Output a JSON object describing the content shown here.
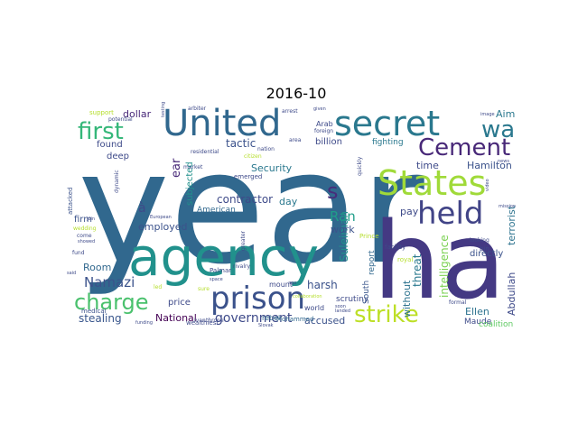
{
  "chart_data": {
    "type": "wordcloud",
    "title": "2016-10",
    "grid": false,
    "words": [
      {
        "text": "year",
        "color": "#31688e"
      },
      {
        "text": "ha",
        "color": "#443983"
      },
      {
        "text": "agency",
        "color": "#21918c"
      },
      {
        "text": "United",
        "color": "#31688e"
      },
      {
        "text": "secret",
        "color": "#2a788e"
      },
      {
        "text": "States",
        "color": "#a0da39"
      },
      {
        "text": "prison",
        "color": "#3b528b"
      },
      {
        "text": "held",
        "color": "#414487"
      },
      {
        "text": "Cement",
        "color": "#482878"
      },
      {
        "text": "first",
        "color": "#35b779"
      },
      {
        "text": "charge",
        "color": "#4ac16d"
      },
      {
        "text": "strike",
        "color": "#bddf26"
      },
      {
        "text": "wa",
        "color": "#2a788e"
      },
      {
        "text": "s",
        "color": "#472d7b"
      },
      {
        "text": "government",
        "color": "#3e4a89"
      },
      {
        "text": "Ran",
        "color": "#1f9e89"
      },
      {
        "text": "Namazi",
        "color": "#3b528b"
      },
      {
        "text": "Suleiman",
        "color": "#21918c"
      },
      {
        "text": "intelligence",
        "color": "#7ad151"
      },
      {
        "text": "Abdullah",
        "color": "#3e4a89"
      },
      {
        "text": "terrorist",
        "color": "#2c728e"
      },
      {
        "text": "stealing",
        "color": "#39568c"
      },
      {
        "text": "contractor",
        "color": "#3e4a89"
      },
      {
        "text": "threat",
        "color": "#2a788e"
      },
      {
        "text": "without",
        "color": "#2c728e"
      },
      {
        "text": "accused",
        "color": "#3b528b"
      },
      {
        "text": "harsh",
        "color": "#3b528b"
      },
      {
        "text": "Hamilton",
        "color": "#3b528b"
      },
      {
        "text": "Ellen",
        "color": "#2c728e"
      },
      {
        "text": "National",
        "color": "#440154"
      },
      {
        "text": "Security",
        "color": "#2a788e"
      },
      {
        "text": "dollar",
        "color": "#482878"
      },
      {
        "text": "tactic",
        "color": "#3b528b"
      },
      {
        "text": "billion",
        "color": "#3e4a89"
      },
      {
        "text": "deep",
        "color": "#3e4a89"
      },
      {
        "text": "subjected",
        "color": "#21918c"
      },
      {
        "text": "found",
        "color": "#3e4a89"
      },
      {
        "text": "employed",
        "color": "#3b528b"
      },
      {
        "text": "Room",
        "color": "#31688e"
      },
      {
        "text": "price",
        "color": "#3e4a89"
      },
      {
        "text": "day",
        "color": "#2a788e"
      },
      {
        "text": "pay",
        "color": "#3e4a89"
      },
      {
        "text": "time",
        "color": "#3e4a89"
      },
      {
        "text": "fighting",
        "color": "#2a788e"
      },
      {
        "text": "work",
        "color": "#3b528b"
      },
      {
        "text": "report",
        "color": "#31688e"
      },
      {
        "text": "scrutiny",
        "color": "#3e4a89"
      },
      {
        "text": "directly",
        "color": "#3b528b"
      },
      {
        "text": "Aim",
        "color": "#2a788e"
      },
      {
        "text": "Maude",
        "color": "#3e4a89"
      },
      {
        "text": "coalition",
        "color": "#5ec962"
      },
      {
        "text": "firm",
        "color": "#3b528b"
      },
      {
        "text": "à",
        "color": "#3e4a89"
      },
      {
        "text": "ear",
        "color": "#482878"
      },
      {
        "text": "American",
        "color": "#31688e"
      },
      {
        "text": "South",
        "color": "#39568c"
      },
      {
        "text": "world",
        "color": "#3e4a89"
      },
      {
        "text": "mount",
        "color": "#3e4a89"
      },
      {
        "text": "rebel",
        "color": "#31688e"
      },
      {
        "text": "Mohammed",
        "color": "#31688e"
      },
      {
        "text": "Palmar",
        "color": "#3e4a89"
      },
      {
        "text": "rivalry",
        "color": "#3e4a89"
      },
      {
        "text": "Ivan",
        "color": "#3e4a89"
      },
      {
        "text": "throne",
        "color": "#3e4a89"
      },
      {
        "text": "wealthiest",
        "color": "#3e4a89"
      },
      {
        "text": "medical",
        "color": "#3b528b"
      },
      {
        "text": "attacked",
        "color": "#3b528b"
      },
      {
        "text": "market",
        "color": "#3e4a89"
      },
      {
        "text": "residential",
        "color": "#3e4a89"
      },
      {
        "text": "emerged",
        "color": "#3e4a89"
      },
      {
        "text": "nation",
        "color": "#3e4a89"
      },
      {
        "text": "Arab",
        "color": "#3e4a89"
      },
      {
        "text": "foreign",
        "color": "#3e4a89"
      },
      {
        "text": "area",
        "color": "#3e4a89"
      },
      {
        "text": "facility",
        "color": "#3e4a89"
      },
      {
        "text": "royal",
        "color": "#b5de2b"
      },
      {
        "text": "Prince",
        "color": "#b5de2b"
      },
      {
        "text": "formal",
        "color": "#3e4a89"
      },
      {
        "text": "bin",
        "color": "#3e4a89"
      },
      {
        "text": "support",
        "color": "#b5de2b"
      },
      {
        "text": "potential",
        "color": "#3e4a89"
      },
      {
        "text": "arbiter",
        "color": "#3e4a89"
      },
      {
        "text": "looking",
        "color": "#3e4a89"
      },
      {
        "text": "quickly",
        "color": "#3e4a89"
      },
      {
        "text": "European",
        "color": "#3e4a89"
      },
      {
        "text": "showed",
        "color": "#3e4a89"
      },
      {
        "text": "come",
        "color": "#3e4a89"
      },
      {
        "text": "wedding",
        "color": "#b5de2b"
      },
      {
        "text": "fund",
        "color": "#3e4a89"
      },
      {
        "text": "testing",
        "color": "#3e4a89"
      },
      {
        "text": "citizen",
        "color": "#b5de2b"
      },
      {
        "text": "arrest",
        "color": "#3e4a89"
      },
      {
        "text": "given",
        "color": "#3e4a89"
      },
      {
        "text": "image",
        "color": "#3e4a89"
      },
      {
        "text": "mission",
        "color": "#3e4a89"
      },
      {
        "text": "news",
        "color": "#3e4a89"
      },
      {
        "text": "video",
        "color": "#3e4a89"
      },
      {
        "text": "space",
        "color": "#3e4a89"
      },
      {
        "text": "funding",
        "color": "#3e4a89"
      },
      {
        "text": "Slovak",
        "color": "#3e4a89"
      },
      {
        "text": "collaboration",
        "color": "#b5de2b"
      },
      {
        "text": "soon",
        "color": "#3e4a89"
      },
      {
        "text": "landed",
        "color": "#3e4a89"
      },
      {
        "text": "dynamic",
        "color": "#3e4a89"
      },
      {
        "text": "greater",
        "color": "#3e4a89"
      },
      {
        "text": "led",
        "color": "#b5de2b"
      },
      {
        "text": "sure",
        "color": "#b5de2b"
      },
      {
        "text": "said",
        "color": "#3e4a89"
      },
      {
        "text": "join",
        "color": "#3e4a89"
      },
      {
        "text": "ago",
        "color": "#3e4a89"
      }
    ]
  }
}
